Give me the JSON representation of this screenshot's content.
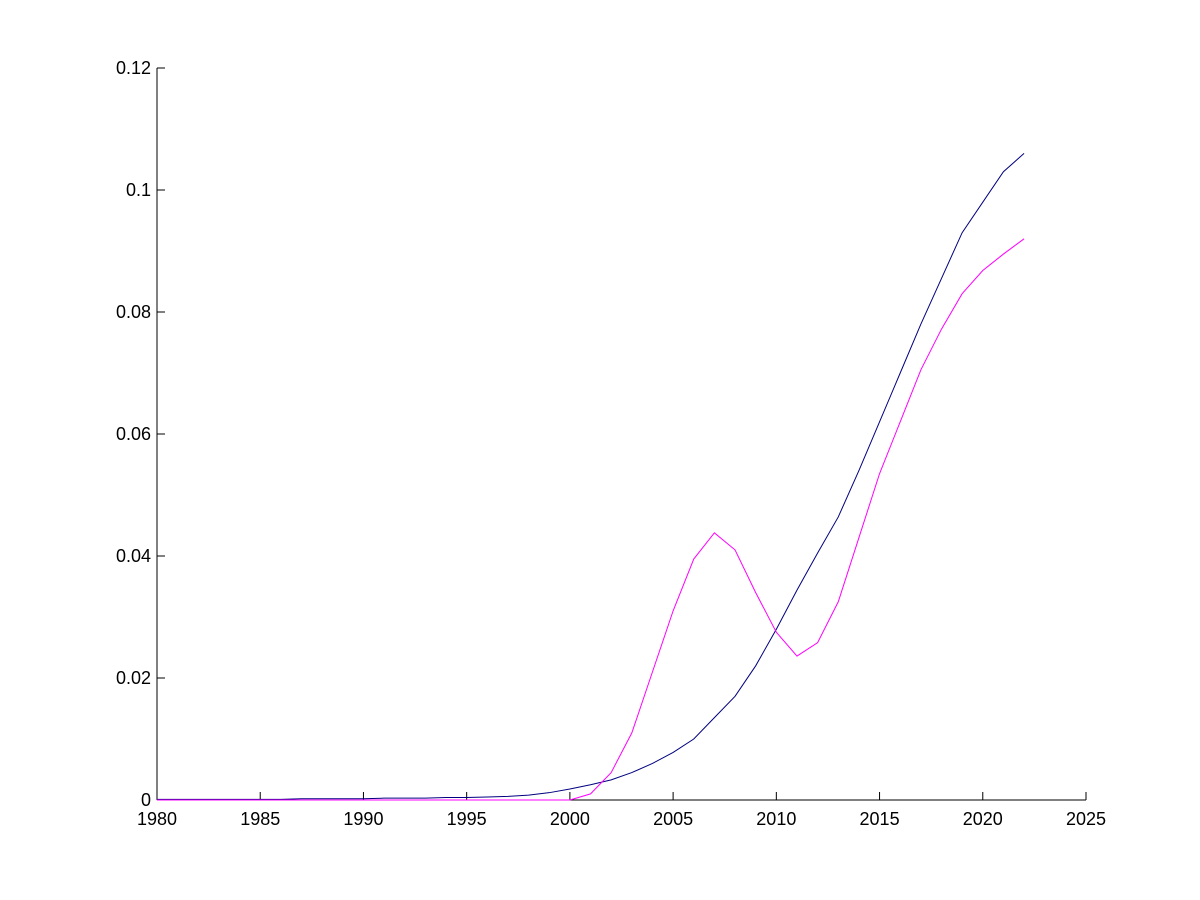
{
  "chart_data": {
    "type": "line",
    "x": [
      1980,
      1981,
      1982,
      1983,
      1984,
      1985,
      1986,
      1987,
      1988,
      1989,
      1990,
      1991,
      1992,
      1993,
      1994,
      1995,
      1996,
      1997,
      1998,
      1999,
      2000,
      2001,
      2002,
      2003,
      2004,
      2005,
      2006,
      2007,
      2008,
      2009,
      2010,
      2011,
      2012,
      2013,
      2014,
      2015,
      2016,
      2017,
      2018,
      2019,
      2020,
      2021,
      2022
    ],
    "series": [
      {
        "color": "#000080",
        "values": [
          0.0001,
          0.0001,
          0.0001,
          0.0001,
          0.0001,
          0.0001,
          0.0001,
          0.0002,
          0.0002,
          0.0002,
          0.0002,
          0.0003,
          0.0003,
          0.0003,
          0.0004,
          0.0004,
          0.0005,
          0.0006,
          0.0008,
          0.0012,
          0.0018,
          0.0025,
          0.0033,
          0.0045,
          0.006,
          0.0078,
          0.01,
          0.0135,
          0.017,
          0.022,
          0.028,
          0.0344,
          0.0405,
          0.0464,
          0.054,
          0.062,
          0.07,
          0.078,
          0.0855,
          0.093,
          0.098,
          0.103,
          0.106
        ]
      },
      {
        "color": "#ff00ff",
        "values": [
          0,
          0,
          0,
          0,
          0,
          0,
          0,
          0,
          0,
          0,
          0,
          0,
          0,
          0,
          0,
          0,
          0,
          0,
          0,
          0,
          0,
          0.001,
          0.0045,
          0.011,
          0.021,
          0.031,
          0.0395,
          0.0438,
          0.041,
          0.034,
          0.0275,
          0.0236,
          0.0258,
          0.0325,
          0.043,
          0.0535,
          0.062,
          0.0705,
          0.0772,
          0.083,
          0.0868,
          0.0895,
          0.092
        ]
      }
    ],
    "xlim": [
      1980,
      2025
    ],
    "xticks": [
      1980,
      1985,
      1990,
      1995,
      2000,
      2005,
      2010,
      2015,
      2020,
      2025
    ],
    "ylim": [
      0,
      0.12
    ],
    "yticks": [
      0,
      0.02,
      0.04,
      0.06,
      0.08,
      0.1,
      0.12
    ],
    "grid": false
  }
}
